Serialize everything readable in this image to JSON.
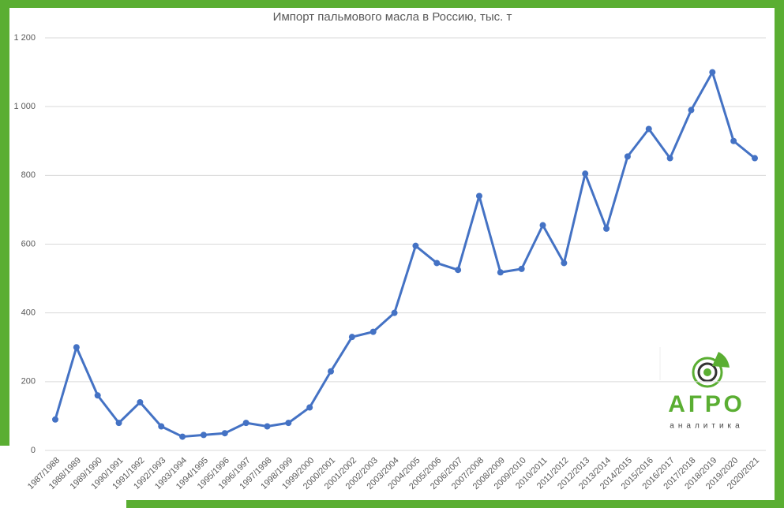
{
  "chart_data": {
    "type": "line",
    "title": "Импорт пальмового масла в Россию, тыс. т",
    "categories": [
      "1987/1988",
      "1988/1989",
      "1989/1990",
      "1990/1991",
      "1991/1992",
      "1992/1993",
      "1993/1994",
      "1994/1995",
      "1995/1996",
      "1996/1997",
      "1997/1998",
      "1998/1999",
      "1999/2000",
      "2000/2001",
      "2001/2002",
      "2002/2003",
      "2003/2004",
      "2004/2005",
      "2005/2006",
      "2006/2007",
      "2007/2008",
      "2008/2009",
      "2009/2010",
      "2010/2011",
      "2011/2012",
      "2012/2013",
      "2013/2014",
      "2014/2015",
      "2015/2016",
      "2016/2017",
      "2017/2018",
      "2018/2019",
      "2019/2020",
      "2020/2021"
    ],
    "series": [
      {
        "name": "Импорт",
        "color": "#4472c4",
        "values": [
          90,
          300,
          160,
          80,
          140,
          70,
          40,
          45,
          50,
          80,
          70,
          80,
          125,
          230,
          330,
          345,
          400,
          595,
          545,
          525,
          740,
          518,
          528,
          655,
          545,
          805,
          645,
          855,
          935,
          850,
          990,
          1100,
          900,
          850
        ]
      }
    ],
    "ylim": [
      0,
      1200
    ],
    "yticks": [
      0,
      200,
      400,
      600,
      800,
      {
        "value": 1000,
        "label": "1 000"
      },
      {
        "value": 1200,
        "label": "1 200"
      }
    ],
    "grid": true
  },
  "logo": {
    "name": "АГРО",
    "tagline": "аналитика"
  }
}
